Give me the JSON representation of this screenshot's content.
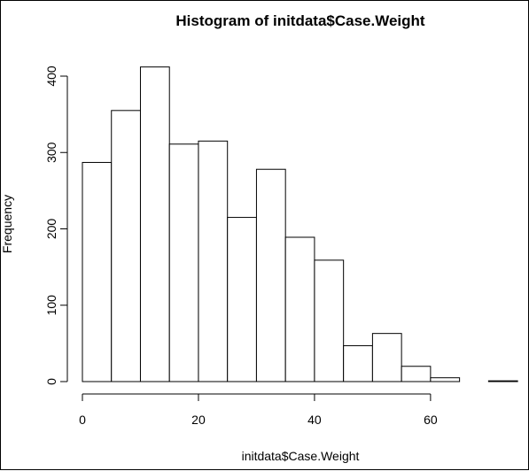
{
  "chart_data": {
    "type": "bar",
    "subtype": "histogram",
    "title": "Histogram of initdata$Case.Weight",
    "xlabel": "initdata$Case.Weight",
    "ylabel": "Frequency",
    "bins": [
      {
        "start": 0,
        "end": 5,
        "value": 287
      },
      {
        "start": 5,
        "end": 10,
        "value": 355
      },
      {
        "start": 10,
        "end": 15,
        "value": 412
      },
      {
        "start": 15,
        "end": 20,
        "value": 311
      },
      {
        "start": 20,
        "end": 25,
        "value": 315
      },
      {
        "start": 25,
        "end": 30,
        "value": 215
      },
      {
        "start": 30,
        "end": 35,
        "value": 278
      },
      {
        "start": 35,
        "end": 40,
        "value": 189
      },
      {
        "start": 40,
        "end": 45,
        "value": 159
      },
      {
        "start": 45,
        "end": 50,
        "value": 47
      },
      {
        "start": 50,
        "end": 55,
        "value": 63
      },
      {
        "start": 55,
        "end": 60,
        "value": 20
      },
      {
        "start": 60,
        "end": 65,
        "value": 5
      },
      {
        "start": 65,
        "end": 70,
        "value": 0
      },
      {
        "start": 70,
        "end": 75,
        "value": 1
      }
    ],
    "xlim": [
      0,
      75
    ],
    "ylim": [
      0,
      412
    ],
    "x_ticks": [
      0,
      20,
      40,
      60
    ],
    "y_ticks": [
      0,
      100,
      200,
      300,
      400
    ],
    "bar_fill": "#ffffff",
    "bar_stroke": "#000000",
    "grid": false
  }
}
